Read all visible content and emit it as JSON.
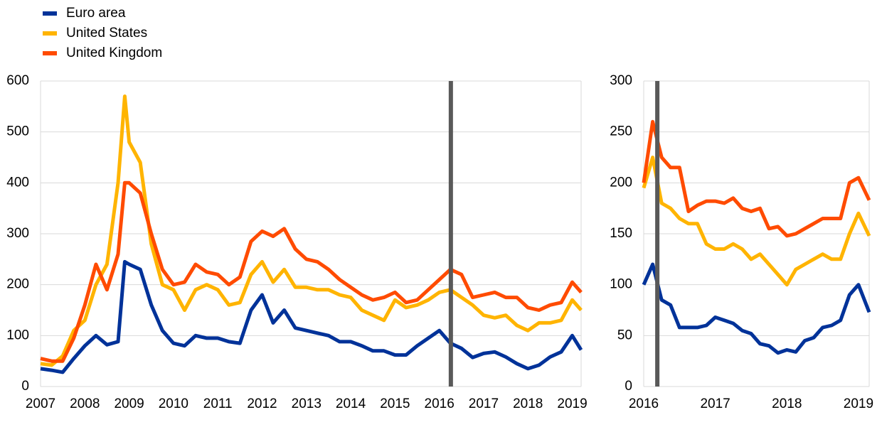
{
  "chart_data": [
    {
      "type": "line",
      "x": [
        2007,
        2007.25,
        2007.5,
        2007.75,
        2008,
        2008.25,
        2008.5,
        2008.75,
        2008.9,
        2009,
        2009.25,
        2009.5,
        2009.75,
        2010,
        2010.25,
        2010.5,
        2010.75,
        2011,
        2011.25,
        2011.5,
        2011.75,
        2012,
        2012.25,
        2012.5,
        2012.75,
        2013,
        2013.25,
        2013.5,
        2013.75,
        2014,
        2014.25,
        2014.5,
        2014.75,
        2015,
        2015.25,
        2015.5,
        2015.75,
        2016,
        2016.25,
        2016.5,
        2016.75,
        2017,
        2017.25,
        2017.5,
        2017.75,
        2018,
        2018.25,
        2018.5,
        2018.75,
        2019,
        2019.2
      ],
      "series": [
        {
          "name": "Euro area",
          "color": "#003299",
          "values": [
            35,
            32,
            28,
            55,
            80,
            100,
            82,
            88,
            245,
            240,
            230,
            160,
            110,
            85,
            80,
            100,
            95,
            95,
            88,
            85,
            150,
            180,
            125,
            150,
            115,
            110,
            105,
            100,
            88,
            88,
            80,
            70,
            70,
            62,
            62,
            80,
            95,
            110,
            85,
            75,
            57,
            65,
            68,
            58,
            45,
            35,
            42,
            58,
            68,
            100,
            72
          ]
        },
        {
          "name": "United States",
          "color": "#ffb400",
          "values": [
            45,
            42,
            60,
            110,
            130,
            200,
            240,
            400,
            570,
            480,
            440,
            280,
            200,
            190,
            150,
            190,
            200,
            190,
            160,
            165,
            220,
            245,
            205,
            230,
            195,
            195,
            190,
            190,
            180,
            175,
            150,
            140,
            130,
            170,
            155,
            160,
            170,
            185,
            190,
            175,
            160,
            140,
            135,
            140,
            120,
            110,
            125,
            125,
            130,
            170,
            150
          ]
        },
        {
          "name": "United Kingdom",
          "color": "#ff4b00",
          "values": [
            55,
            50,
            50,
            95,
            160,
            240,
            190,
            260,
            400,
            400,
            380,
            300,
            230,
            200,
            205,
            240,
            225,
            220,
            200,
            215,
            285,
            305,
            295,
            310,
            270,
            250,
            245,
            230,
            210,
            195,
            180,
            170,
            175,
            185,
            165,
            170,
            190,
            210,
            230,
            220,
            175,
            180,
            185,
            175,
            175,
            155,
            150,
            160,
            165,
            205,
            185
          ]
        }
      ],
      "xlim": [
        2007,
        2019.2
      ],
      "xticks": [
        2007,
        2008,
        2009,
        2010,
        2011,
        2012,
        2013,
        2014,
        2015,
        2016,
        2017,
        2018,
        2019
      ],
      "ylim": [
        0,
        600
      ],
      "yticks": [
        0,
        100,
        200,
        300,
        400,
        500,
        600
      ],
      "vline": 2016.26,
      "vline_color": "#595959",
      "grid": true,
      "legend": "top-left"
    },
    {
      "type": "line",
      "x": [
        2016,
        2016.125,
        2016.25,
        2016.375,
        2016.5,
        2016.625,
        2016.75,
        2016.875,
        2017,
        2017.125,
        2017.25,
        2017.375,
        2017.5,
        2017.625,
        2017.75,
        2017.875,
        2018,
        2018.125,
        2018.25,
        2018.375,
        2018.5,
        2018.625,
        2018.75,
        2018.875,
        2019,
        2019.15
      ],
      "series": [
        {
          "color": "#003299",
          "values": [
            100,
            120,
            85,
            80,
            58,
            58,
            58,
            60,
            68,
            65,
            62,
            55,
            52,
            42,
            40,
            33,
            36,
            34,
            45,
            48,
            58,
            60,
            65,
            90,
            100,
            73
          ]
        },
        {
          "color": "#ffb400",
          "values": [
            195,
            225,
            180,
            175,
            165,
            160,
            160,
            140,
            135,
            135,
            140,
            135,
            125,
            130,
            120,
            110,
            100,
            115,
            120,
            125,
            130,
            125,
            125,
            150,
            170,
            148
          ]
        },
        {
          "color": "#ff4b00",
          "values": [
            200,
            260,
            225,
            215,
            215,
            172,
            178,
            182,
            182,
            180,
            185,
            175,
            172,
            175,
            155,
            157,
            148,
            150,
            155,
            160,
            165,
            165,
            165,
            200,
            205,
            183
          ]
        }
      ],
      "xlim": [
        2016,
        2019.15
      ],
      "xticks": [
        2016,
        2017,
        2018,
        2019
      ],
      "ylim": [
        0,
        300
      ],
      "yticks": [
        0,
        50,
        100,
        150,
        200,
        250,
        300
      ],
      "vline": 2016.19,
      "vline_color": "#595959",
      "grid": true
    }
  ]
}
